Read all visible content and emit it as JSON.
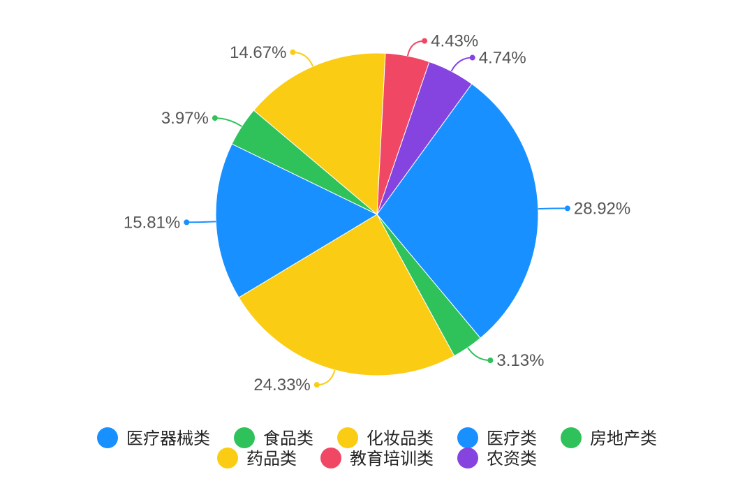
{
  "chart_data": {
    "type": "pie",
    "slices": [
      {
        "label": "医疗器械类",
        "value": 28.92,
        "value_label": "28.92%",
        "color": "#1890ff"
      },
      {
        "label": "食品类",
        "value": 3.13,
        "value_label": "3.13%",
        "color": "#2fc25b"
      },
      {
        "label": "药品类",
        "value": 24.33,
        "value_label": "24.33%",
        "color": "#facc14"
      },
      {
        "label": "医疗类",
        "value": 15.81,
        "value_label": "15.81%",
        "color": "#1890ff"
      },
      {
        "label": "房地产类",
        "value": 3.97,
        "value_label": "3.97%",
        "color": "#2fc25b"
      },
      {
        "label": "化妆品类",
        "value": 14.67,
        "value_label": "14.67%",
        "color": "#facc14"
      },
      {
        "label": "教育培训类",
        "value": 4.43,
        "value_label": "4.43%",
        "color": "#f04864"
      },
      {
        "label": "农资类",
        "value": 4.74,
        "value_label": "4.74%",
        "color": "#8543e0"
      }
    ],
    "legend": {
      "placement": "bottom",
      "order": [
        "医疗器械类",
        "食品类",
        "化妆品类",
        "医疗类",
        "房地产类",
        "药品类",
        "教育培训类",
        "农资类"
      ]
    }
  }
}
